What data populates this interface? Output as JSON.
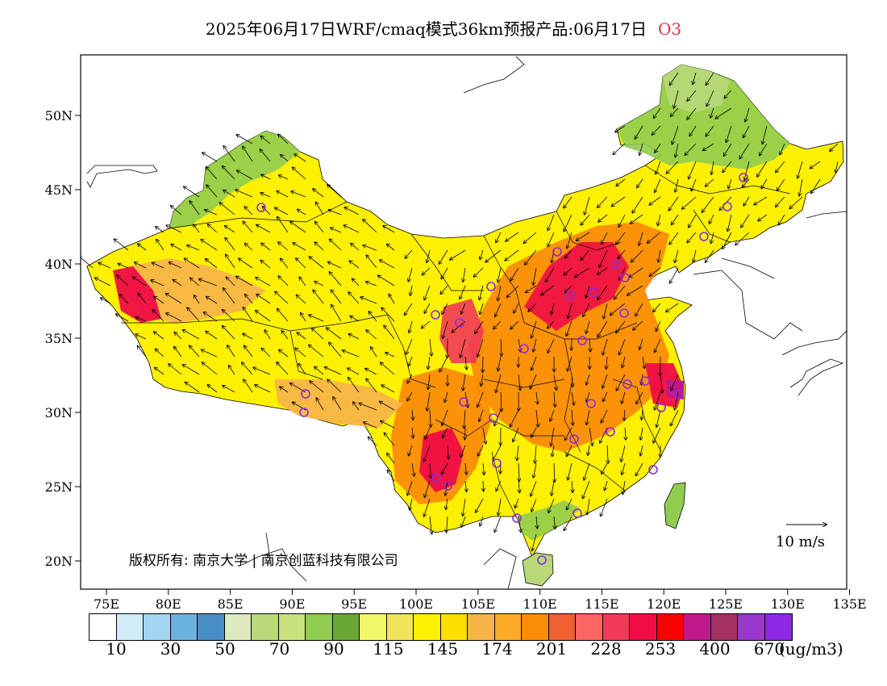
{
  "title": {
    "main": "2025年06月17日WRF/cmaq模式36km预报产品:06月17日",
    "species": "O3"
  },
  "axes": {
    "lat_labels": [
      "50N",
      "45N",
      "40N",
      "35N",
      "30N",
      "25N",
      "20N"
    ],
    "lon_labels": [
      "75E",
      "80E",
      "85E",
      "90E",
      "95E",
      "100E",
      "105E",
      "110E",
      "115E",
      "120E",
      "125E",
      "130E",
      "135E"
    ]
  },
  "map": {
    "copyright": "版权所有: 南京大学 | 南京创蓝科技有限公司",
    "vector_reference": "10 m/s",
    "ocean_color": "#ffffff",
    "border_color": "#000000",
    "station_marker_color": "#8a2be2"
  },
  "legend": {
    "unit": "(ug/m3)",
    "labels": [
      "10",
      "30",
      "50",
      "70",
      "90",
      "115",
      "145",
      "174",
      "201",
      "228",
      "253",
      "400",
      "670"
    ],
    "colors": [
      "#ffffff",
      "#d2ecf8",
      "#a0d6f2",
      "#6cb2de",
      "#4a8ec8",
      "#ddeac0",
      "#b8d87a",
      "#cae27e",
      "#90cc50",
      "#6aa836",
      "#f0f86a",
      "#f2e45a",
      "#fdf000",
      "#fde000",
      "#f8b448",
      "#fbab28",
      "#fb8c08",
      "#f06030",
      "#fd6464",
      "#f23a58",
      "#f00c46",
      "#fa0000",
      "#c0188a",
      "#a43064",
      "#9838cc",
      "#8c28e6"
    ]
  }
}
